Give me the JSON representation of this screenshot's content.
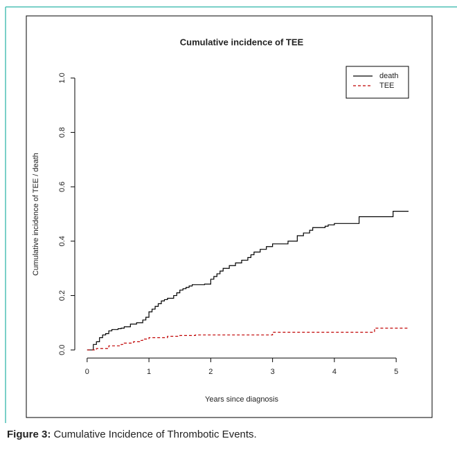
{
  "chart_data": {
    "type": "step",
    "title": "Cumulative incidence of TEE",
    "xlabel": "Years since diagnosis",
    "ylabel": "Cumulative incidence of TEE / death",
    "xlim": [
      -0.2,
      5.2
    ],
    "ylim": [
      -0.03,
      1.043
    ],
    "xticks": [
      0,
      1,
      2,
      3,
      4,
      5
    ],
    "yticks": [
      {
        "value": 0,
        "label": "0.0"
      },
      {
        "value": 0.2,
        "label": "0.2"
      },
      {
        "value": 0.4,
        "label": "0.4"
      },
      {
        "value": 0.6,
        "label": "0.6"
      },
      {
        "value": 0.8,
        "label": "0.8"
      },
      {
        "value": 1,
        "label": "1.0"
      }
    ],
    "legend": "top-right",
    "series": [
      {
        "name": "death",
        "color": "#000000",
        "dash": false,
        "x": [
          0,
          0.05,
          0.1,
          0.15,
          0.2,
          0.25,
          0.3,
          0.35,
          0.4,
          0.5,
          0.55,
          0.6,
          0.7,
          0.8,
          0.9,
          0.95,
          1.0,
          1.05,
          1.1,
          1.15,
          1.2,
          1.25,
          1.3,
          1.4,
          1.45,
          1.5,
          1.55,
          1.6,
          1.65,
          1.7,
          1.9,
          2.0,
          2.05,
          2.1,
          2.15,
          2.2,
          2.3,
          2.4,
          2.5,
          2.6,
          2.65,
          2.7,
          2.8,
          2.9,
          3.0,
          3.25,
          3.4,
          3.5,
          3.6,
          3.65,
          3.85,
          3.9,
          4.0,
          4.4,
          4.95,
          5.2
        ],
        "values": [
          0,
          0,
          0.02,
          0.03,
          0.045,
          0.055,
          0.06,
          0.07,
          0.075,
          0.078,
          0.08,
          0.085,
          0.095,
          0.1,
          0.11,
          0.12,
          0.14,
          0.15,
          0.16,
          0.17,
          0.18,
          0.185,
          0.19,
          0.2,
          0.21,
          0.22,
          0.225,
          0.23,
          0.235,
          0.24,
          0.242,
          0.26,
          0.27,
          0.28,
          0.29,
          0.3,
          0.31,
          0.32,
          0.33,
          0.34,
          0.35,
          0.36,
          0.37,
          0.38,
          0.39,
          0.4,
          0.42,
          0.43,
          0.44,
          0.45,
          0.455,
          0.46,
          0.465,
          0.49,
          0.51,
          0.51
        ]
      },
      {
        "name": "TEE",
        "color": "#c00000",
        "dash": true,
        "x": [
          0,
          0.15,
          0.35,
          0.55,
          0.6,
          0.75,
          0.85,
          0.9,
          1.0,
          1.3,
          1.5,
          1.75,
          3.0,
          4.65,
          5.2
        ],
        "values": [
          0,
          0.005,
          0.015,
          0.02,
          0.025,
          0.03,
          0.035,
          0.04,
          0.045,
          0.05,
          0.053,
          0.055,
          0.065,
          0.08,
          0.08
        ]
      }
    ]
  },
  "caption": {
    "label": "Figure 3:",
    "text": "Cumulative Incidence of Thrombotic Events."
  }
}
